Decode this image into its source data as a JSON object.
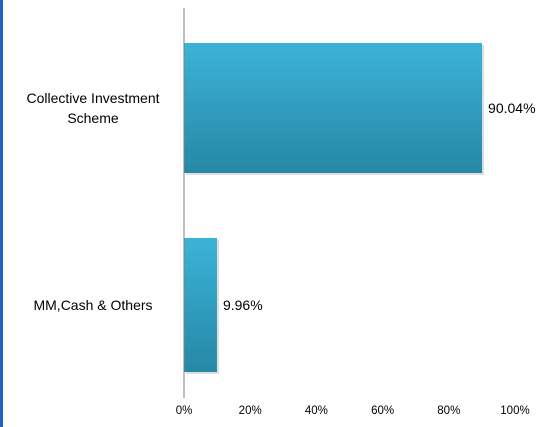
{
  "chart_data": {
    "type": "bar",
    "orientation": "horizontal",
    "categories": [
      [
        "Collective Investment",
        "Scheme"
      ],
      [
        "MM,Cash & Others"
      ]
    ],
    "values": [
      90.04,
      9.96
    ],
    "value_labels": [
      "90.04%",
      "9.96%"
    ],
    "xlim": [
      0,
      100
    ],
    "xticks": [
      0,
      20,
      40,
      60,
      80,
      100
    ],
    "xtick_labels": [
      "0%",
      "20%",
      "40%",
      "60%",
      "80%",
      "100%"
    ],
    "grid": false,
    "legend": "none",
    "title": "",
    "xlabel": "",
    "ylabel": ""
  },
  "colors": {
    "bar_light": "#3bb3d8",
    "bar_dark": "#2688a6",
    "axis": "#7f7f7f",
    "left_accent": "#1f5fbf",
    "bar_shadow": "#c8c8c8"
  }
}
